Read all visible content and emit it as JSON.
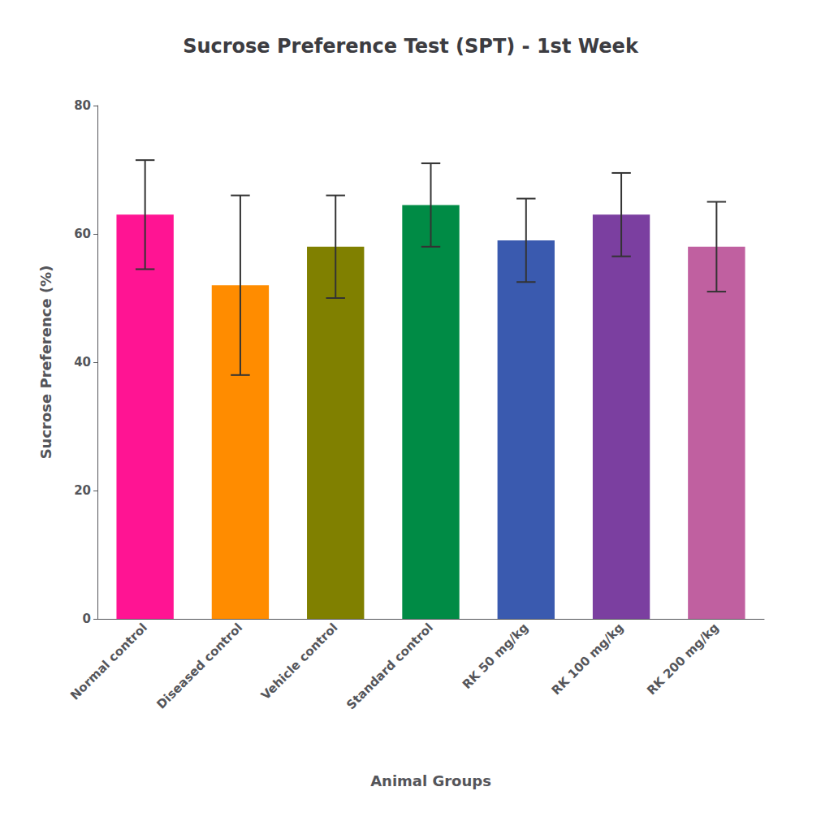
{
  "chart_data": {
    "type": "bar",
    "title": "Sucrose Preference Test (SPT) - 1st Week",
    "xlabel": "Animal Groups",
    "ylabel": "Sucrose Preference (%)",
    "categories": [
      "Normal control",
      "Diseased control",
      "Vehicle control",
      "Standard control",
      "RK 50 mg/kg",
      "RK 100 mg/kg",
      "RK 200 mg/kg"
    ],
    "values": [
      63.0,
      52.0,
      58.0,
      64.5,
      59.0,
      63.0,
      58.0
    ],
    "errors": [
      8.5,
      14.0,
      8.0,
      6.5,
      6.5,
      6.5,
      7.0
    ],
    "colors": [
      "#FF1493",
      "#FF8C00",
      "#808000",
      "#008B45",
      "#3A5AAF",
      "#7B3FA0",
      "#C060A0"
    ],
    "ylim": [
      0,
      80
    ],
    "yticks": [
      0,
      20,
      40,
      60,
      80
    ],
    "grid": false
  }
}
